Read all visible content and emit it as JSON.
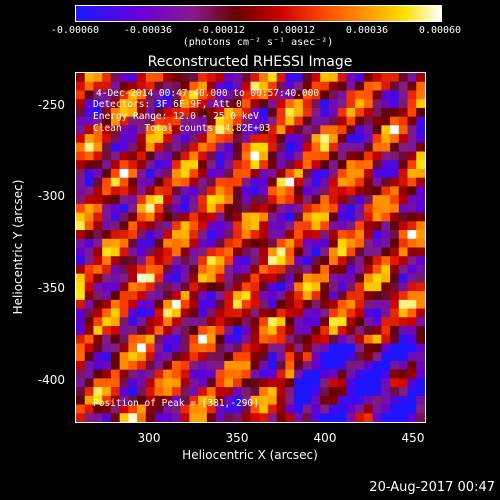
{
  "colorbar": {
    "ticks": [
      "-0.00060",
      "-0.00036",
      "-0.00012",
      "0.00012",
      "0.00036",
      "0.00060"
    ],
    "units": "(photons cm⁻² s⁻¹ asec⁻²)"
  },
  "chart_data": {
    "type": "heatmap",
    "title": "Reconstructed RHESSI Image",
    "xlabel": "Heliocentric X (arcsec)",
    "ylabel": "Heliocentric Y (arcsec)",
    "xlim": [
      262,
      450
    ],
    "ylim": [
      -415,
      -235
    ],
    "xticks": [
      "300",
      "350",
      "400",
      "450"
    ],
    "yticks": [
      "-250",
      "-300",
      "-350",
      "-400"
    ],
    "clim": [
      -0.0006,
      0.0006
    ],
    "peak": [
      381,
      -290
    ],
    "annotations": {
      "time": "4-Dec-2014 00:47:40.000 to 00:57:40.000",
      "detectors": "Detectors: 3F 6F 9F, Att 0",
      "energy": "Energy Range: 12.0 - 25.0 keV",
      "clean": "Clean    Total counts: 4.82E+03",
      "peak_text": "Position of Peak = [381,-290]"
    }
  },
  "footer": "20-Aug-2017 00:47"
}
